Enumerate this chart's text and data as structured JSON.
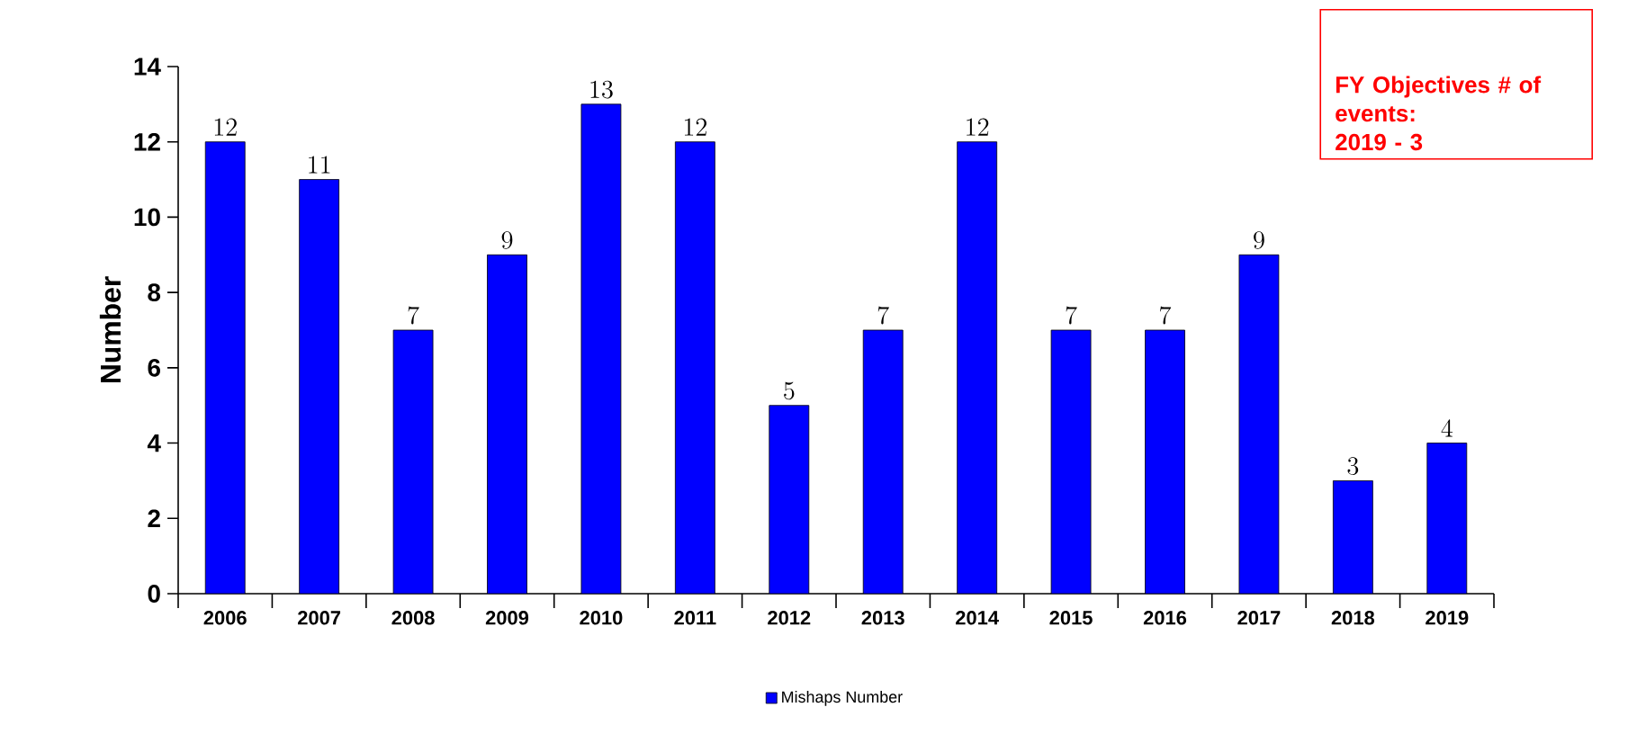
{
  "chart_data": {
    "type": "bar",
    "ylabel": "Number",
    "categories": [
      "2006",
      "2007",
      "2008",
      "2009",
      "2010",
      "2011",
      "2012",
      "2013",
      "2014",
      "2015",
      "2016",
      "2017",
      "2018",
      "2019"
    ],
    "series": [
      {
        "name": "Mishaps Number",
        "color": "#0000ff",
        "values": [
          12,
          11,
          7,
          9,
          13,
          12,
          5,
          7,
          12,
          7,
          7,
          9,
          3,
          4
        ]
      }
    ],
    "ylim": [
      0,
      14
    ],
    "yticks": [
      0,
      2,
      4,
      6,
      8,
      10,
      12,
      14
    ],
    "data_labels": true,
    "legend": "bottom",
    "annotations": [
      "FY Objectives # of events:",
      "2019 - 3"
    ]
  }
}
